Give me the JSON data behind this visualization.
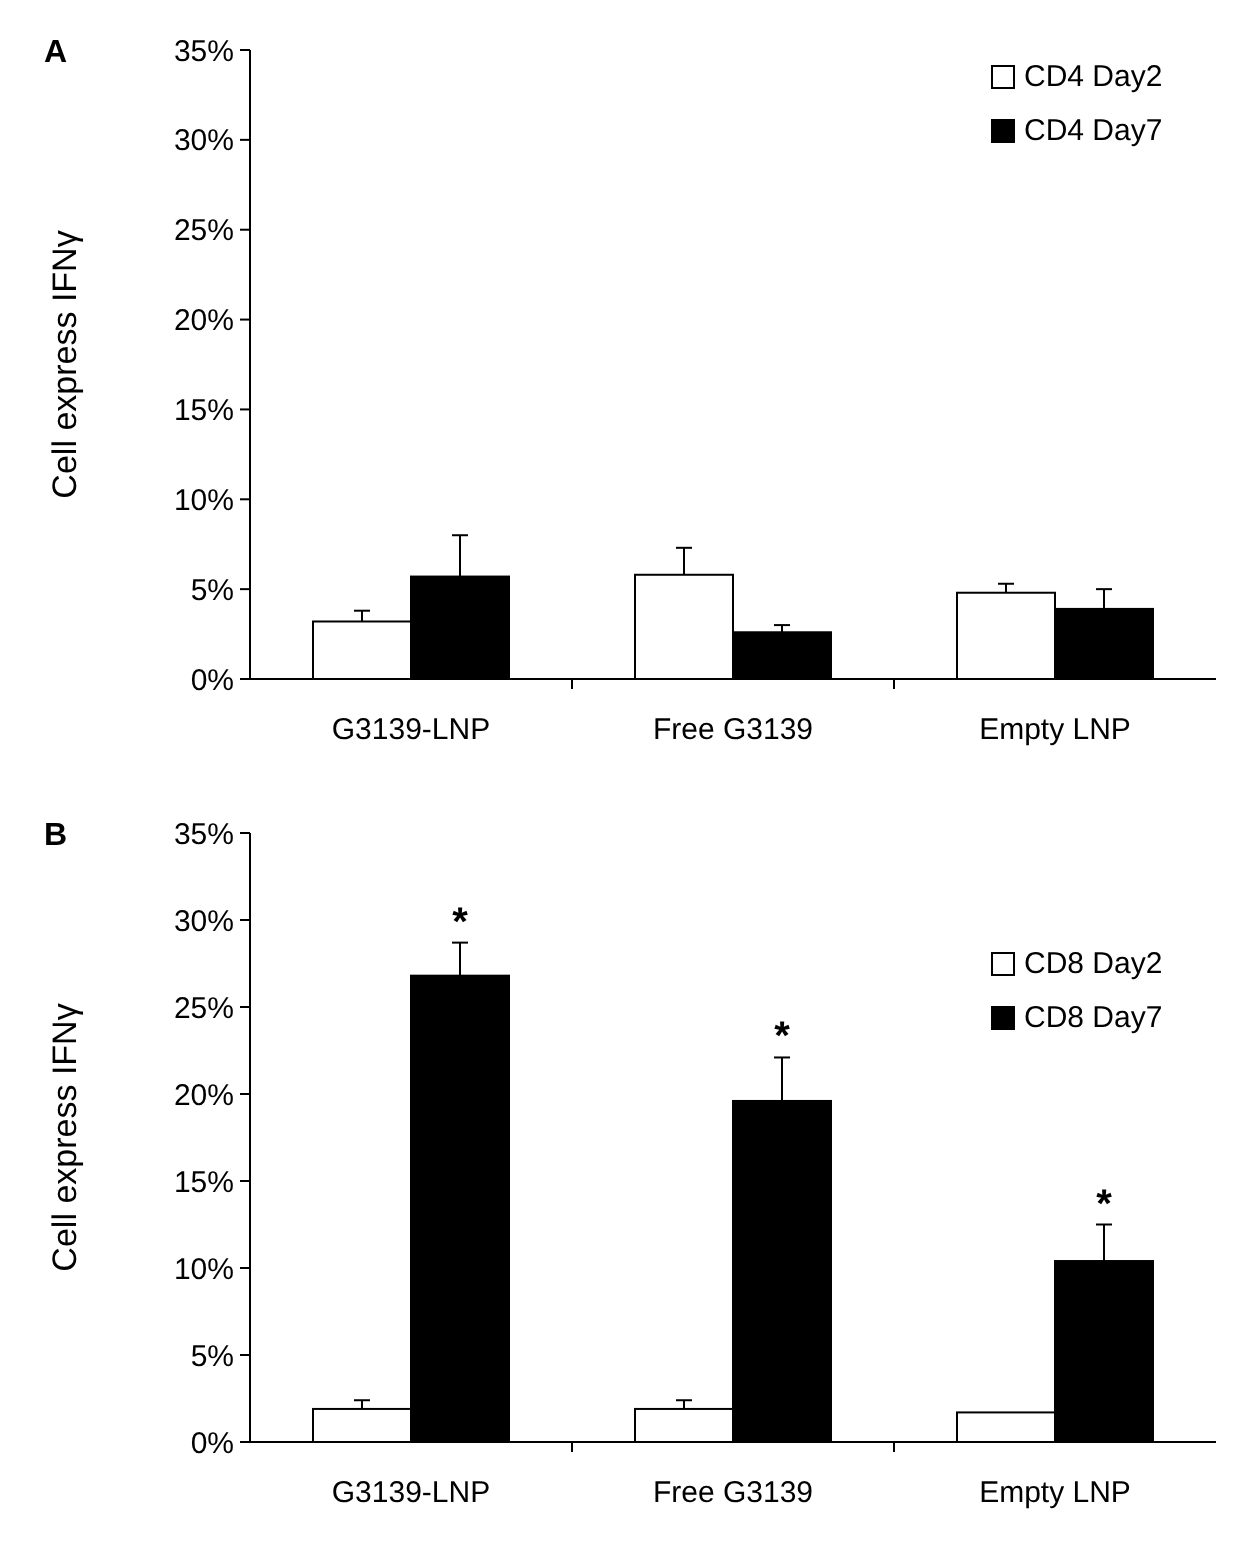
{
  "chart_data": [
    {
      "type": "bar",
      "title": "A",
      "ylabel": "Cell express IFNγ",
      "categories": [
        "G3139-LNP",
        "Free G3139",
        "Empty LNP"
      ],
      "series": [
        {
          "name": "CD4 Day2",
          "color": "#ffffff",
          "values": [
            3.2,
            5.8,
            4.8
          ],
          "errors": [
            0.6,
            1.5,
            0.5
          ]
        },
        {
          "name": "CD4 Day7",
          "color": "#000000",
          "values": [
            5.7,
            2.6,
            3.9
          ],
          "errors": [
            2.3,
            0.4,
            1.1
          ]
        }
      ],
      "ylim": [
        0,
        35
      ],
      "yticks": [
        {
          "value": 0,
          "label": "0%"
        },
        {
          "value": 5,
          "label": "5%"
        },
        {
          "value": 10,
          "label": "10%"
        },
        {
          "value": 15,
          "label": "15%"
        },
        {
          "value": 20,
          "label": "20%"
        },
        {
          "value": 25,
          "label": "25%"
        },
        {
          "value": 30,
          "label": "30%"
        },
        {
          "value": 35,
          "label": "35%"
        }
      ],
      "legend": "top right",
      "grid": false
    },
    {
      "type": "bar",
      "title": "B",
      "ylabel": "Cell express IFNγ",
      "categories": [
        "G3139-LNP",
        "Free G3139",
        "Empty LNP"
      ],
      "series": [
        {
          "name": "CD8 Day2",
          "color": "#ffffff",
          "values": [
            1.9,
            1.9,
            1.7
          ],
          "errors": [
            0.5,
            0.5,
            null
          ]
        },
        {
          "name": "CD8 Day7",
          "color": "#000000",
          "values": [
            26.8,
            19.6,
            10.4
          ],
          "errors": [
            1.9,
            2.5,
            2.1
          ]
        }
      ],
      "ylim": [
        0,
        35
      ],
      "yticks": [
        {
          "value": 0,
          "label": "0%"
        },
        {
          "value": 5,
          "label": "5%"
        },
        {
          "value": 10,
          "label": "10%"
        },
        {
          "value": 15,
          "label": "15%"
        },
        {
          "value": 20,
          "label": "20%"
        },
        {
          "value": 25,
          "label": "25%"
        },
        {
          "value": 30,
          "label": "30%"
        },
        {
          "value": 35,
          "label": "35%"
        }
      ],
      "annotations": [
        {
          "text": "*",
          "x": "G3139-LNP",
          "y": 26.8
        },
        {
          "text": "*",
          "x": "Free G3139",
          "y": 19.6
        },
        {
          "text": "*",
          "x": "Empty LNP",
          "y": 10.4
        }
      ],
      "legend": "right",
      "grid": false
    }
  ]
}
